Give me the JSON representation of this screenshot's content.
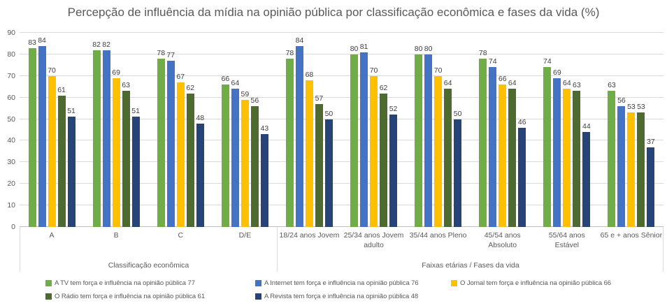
{
  "chart_data": {
    "type": "bar",
    "title": "Percepção de influência da mídia na opinião pública por classificação econômica e fases da vida (%)",
    "categories": [
      "A",
      "B",
      "C",
      "D/E",
      "18/24 anos Jovem",
      "25/34 anos Jovem adulto",
      "35/44 anos Pleno",
      "45/54 anos Absoluto",
      "55/64 anos Estável",
      "65 e + anos Sênior"
    ],
    "category_display": [
      "A",
      "B",
      "C",
      "D/E",
      "18/24 anos Jovem",
      "25/34 anos Jovem\nadulto",
      "35/44 anos Pleno",
      "45/54 anos\nAbsoluto",
      "55/64 anos\nEstável",
      "65 e + anos Sênior"
    ],
    "category_groups": [
      {
        "label": "Classificação econômica",
        "span": 4
      },
      {
        "label": "Faixas etárias / Fases da vida",
        "span": 6
      }
    ],
    "series": [
      {
        "name": "A TV tem força e influência na opinião pública 77",
        "color": "#70AD47",
        "values": [
          83,
          82,
          78,
          66,
          78,
          80,
          80,
          78,
          74,
          63
        ]
      },
      {
        "name": "A Internet tem força e influência na opinião pública 76",
        "color": "#4472C4",
        "values": [
          84,
          82,
          77,
          64,
          84,
          81,
          80,
          74,
          69,
          56
        ]
      },
      {
        "name": "O Jornal tem força e influência na opinião pública 66",
        "color": "#FFC000",
        "values": [
          70,
          69,
          67,
          59,
          68,
          70,
          70,
          66,
          64,
          53
        ]
      },
      {
        "name": "O Rádio tem força e influência na opinião pública 61",
        "color": "#4E6B2F",
        "values": [
          61,
          63,
          62,
          56,
          57,
          62,
          64,
          64,
          63,
          53
        ]
      },
      {
        "name": "A Revista tem força e influência na opinião pública 48",
        "color": "#264478",
        "values": [
          51,
          51,
          48,
          43,
          50,
          52,
          50,
          46,
          44,
          37
        ]
      }
    ],
    "ylim": [
      0,
      90
    ],
    "yticks": [
      0,
      10,
      20,
      30,
      40,
      50,
      60,
      70,
      80,
      90
    ],
    "grid": true,
    "data_labels": true,
    "legend_position": "bottom"
  },
  "colors": {
    "title": "#595959",
    "axis_text": "#595959",
    "data_label": "#404040",
    "gridline": "#D9D9D9",
    "axis_line": "#BFBFBF"
  }
}
